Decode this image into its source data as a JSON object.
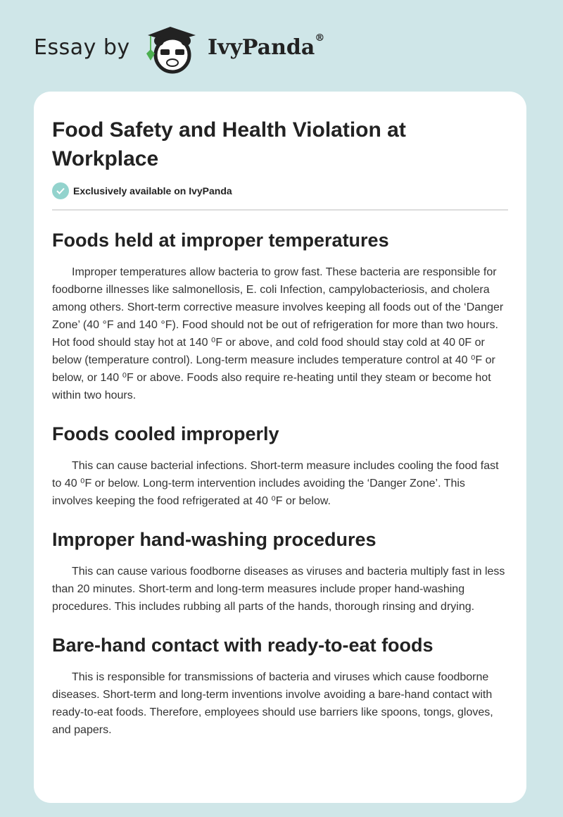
{
  "header": {
    "essay_by": "Essay by",
    "brand": "IvyPanda",
    "registered": "®"
  },
  "title": "Food Safety and Health Violation at Workplace",
  "badge": "Exclusively available on IvyPanda",
  "sections": [
    {
      "heading": "Foods held at improper temperatures",
      "body": "Improper temperatures allow bacteria to grow fast. These bacteria are responsible for foodborne illnesses like salmonellosis, E. coli Infection, campylobacteriosis, and cholera among others. Short-term corrective measure involves keeping all foods out of the ‘Danger Zone’ (40 °F and 140 °F). Food should not be out of refrigeration for more than two hours. Hot food should stay hot at 140 ⁰F or above, and cold food should stay cold at 40 0F or below (temperature control). Long-term measure includes temperature control at 40 ⁰F or below, or 140 ⁰F or above. Foods also require re-heating until they steam or become hot within two hours."
    },
    {
      "heading": "Foods cooled improperly",
      "body": "This can cause bacterial infections. Short-term measure includes cooling the food fast to 40 ⁰F or below. Long-term intervention includes avoiding the ‘Danger Zone’. This involves keeping the food refrigerated at 40 ⁰F or below."
    },
    {
      "heading": "Improper hand-washing procedures",
      "body": "This can cause various foodborne diseases as viruses and bacteria multiply fast in less than 20 minutes. Short-term and long-term measures include proper hand-washing procedures. This includes rubbing all parts of the hands, thorough rinsing and drying."
    },
    {
      "heading": "Bare-hand contact with ready-to-eat foods",
      "body": "This is responsible for transmissions of bacteria and viruses which cause foodborne diseases. Short-term and long-term inventions involve avoiding a bare-hand contact with ready-to-eat foods. Therefore, employees should use barriers like spoons, tongs, gloves, and papers."
    }
  ]
}
